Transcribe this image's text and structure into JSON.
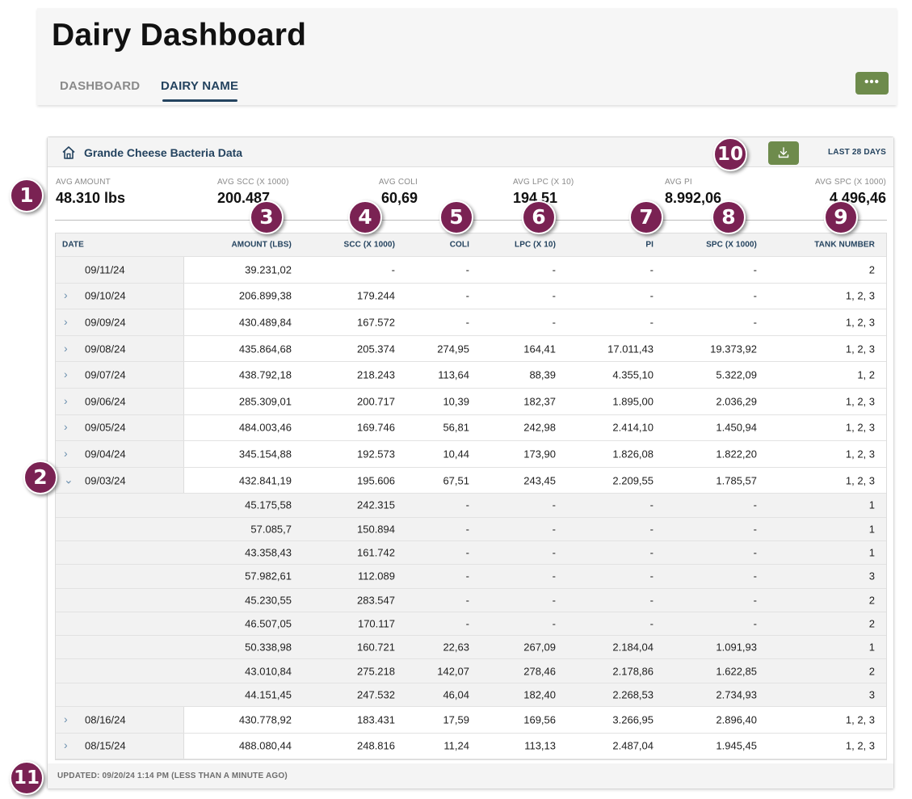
{
  "header": {
    "title": "Dairy Dashboard",
    "tabs": [
      {
        "label": "DASHBOARD",
        "active": false
      },
      {
        "label": "DAIRY NAME",
        "active": true
      }
    ],
    "more_label": "•••"
  },
  "card": {
    "title": "Grande Cheese Bacteria Data",
    "range_label": "LAST 28 DAYS",
    "icons": {
      "home": "home-icon",
      "download": "download-icon"
    },
    "summary": [
      {
        "label": "AVG AMOUNT",
        "value": "48.310 lbs"
      },
      {
        "label": "AVG SCC (X 1000)",
        "value": "200.487"
      },
      {
        "label": "AVG COLI",
        "value": "60,69"
      },
      {
        "label": "AVG LPC (X 10)",
        "value": "194,51"
      },
      {
        "label": "AVG PI",
        "value": "8.992,06"
      },
      {
        "label": "AVG SPC (X 1000)",
        "value": "4.496,46"
      }
    ],
    "table": {
      "columns": [
        "DATE",
        "AMOUNT (LBS)",
        "SCC (X 1000)",
        "COLI",
        "LPC (X 10)",
        "PI",
        "SPC (X 1000)",
        "TANK NUMBER"
      ],
      "rows": [
        {
          "kind": "main",
          "chevron": "",
          "date": "09/11/24",
          "amount": "39.231,02",
          "scc": "-",
          "coli": "-",
          "lpc": "-",
          "pi": "-",
          "spc": "-",
          "tank": "2"
        },
        {
          "kind": "main",
          "chevron": "›",
          "date": "09/10/24",
          "amount": "206.899,38",
          "scc": "179.244",
          "coli": "-",
          "lpc": "-",
          "pi": "-",
          "spc": "-",
          "tank": "1, 2, 3"
        },
        {
          "kind": "main",
          "chevron": "›",
          "date": "09/09/24",
          "amount": "430.489,84",
          "scc": "167.572",
          "coli": "-",
          "lpc": "-",
          "pi": "-",
          "spc": "-",
          "tank": "1, 2, 3"
        },
        {
          "kind": "main",
          "chevron": "›",
          "date": "09/08/24",
          "amount": "435.864,68",
          "scc": "205.374",
          "coli": "274,95",
          "lpc": "164,41",
          "pi": "17.011,43",
          "spc": "19.373,92",
          "tank": "1, 2, 3"
        },
        {
          "kind": "main",
          "chevron": "›",
          "date": "09/07/24",
          "amount": "438.792,18",
          "scc": "218.243",
          "coli": "113,64",
          "lpc": "88,39",
          "pi": "4.355,10",
          "spc": "5.322,09",
          "tank": "1, 2"
        },
        {
          "kind": "main",
          "chevron": "›",
          "date": "09/06/24",
          "amount": "285.309,01",
          "scc": "200.717",
          "coli": "10,39",
          "lpc": "182,37",
          "pi": "1.895,00",
          "spc": "2.036,29",
          "tank": "1, 2, 3"
        },
        {
          "kind": "main",
          "chevron": "›",
          "date": "09/05/24",
          "amount": "484.003,46",
          "scc": "169.746",
          "coli": "56,81",
          "lpc": "242,98",
          "pi": "2.414,10",
          "spc": "1.450,94",
          "tank": "1, 2, 3"
        },
        {
          "kind": "main",
          "chevron": "›",
          "date": "09/04/24",
          "amount": "345.154,88",
          "scc": "192.573",
          "coli": "10,44",
          "lpc": "173,90",
          "pi": "1.826,08",
          "spc": "1.822,20",
          "tank": "1, 2, 3"
        },
        {
          "kind": "main",
          "chevron": "⌄",
          "date": "09/03/24",
          "amount": "432.841,19",
          "scc": "195.606",
          "coli": "67,51",
          "lpc": "243,45",
          "pi": "2.209,55",
          "spc": "1.785,57",
          "tank": "1, 2, 3"
        },
        {
          "kind": "sub",
          "amount": "45.175,58",
          "scc": "242.315",
          "coli": "-",
          "lpc": "-",
          "pi": "-",
          "spc": "-",
          "tank": "1"
        },
        {
          "kind": "sub",
          "amount": "57.085,7",
          "scc": "150.894",
          "coli": "-",
          "lpc": "-",
          "pi": "-",
          "spc": "-",
          "tank": "1"
        },
        {
          "kind": "sub",
          "amount": "43.358,43",
          "scc": "161.742",
          "coli": "-",
          "lpc": "-",
          "pi": "-",
          "spc": "-",
          "tank": "1"
        },
        {
          "kind": "sub",
          "amount": "57.982,61",
          "scc": "112.089",
          "coli": "-",
          "lpc": "-",
          "pi": "-",
          "spc": "-",
          "tank": "3"
        },
        {
          "kind": "sub",
          "amount": "45.230,55",
          "scc": "283.547",
          "coli": "-",
          "lpc": "-",
          "pi": "-",
          "spc": "-",
          "tank": "2"
        },
        {
          "kind": "sub",
          "amount": "46.507,05",
          "scc": "170.117",
          "coli": "-",
          "lpc": "-",
          "pi": "-",
          "spc": "-",
          "tank": "2"
        },
        {
          "kind": "sub",
          "amount": "50.338,98",
          "scc": "160.721",
          "coli": "22,63",
          "lpc": "267,09",
          "pi": "2.184,04",
          "spc": "1.091,93",
          "tank": "1"
        },
        {
          "kind": "sub",
          "amount": "43.010,84",
          "scc": "275.218",
          "coli": "142,07",
          "lpc": "278,46",
          "pi": "2.178,86",
          "spc": "1.622,85",
          "tank": "2"
        },
        {
          "kind": "sub",
          "amount": "44.151,45",
          "scc": "247.532",
          "coli": "46,04",
          "lpc": "182,40",
          "pi": "2.268,53",
          "spc": "2.734,93",
          "tank": "3"
        },
        {
          "kind": "main",
          "chevron": "›",
          "date": "08/16/24",
          "amount": "430.778,92",
          "scc": "183.431",
          "coli": "17,59",
          "lpc": "169,56",
          "pi": "3.266,95",
          "spc": "2.896,40",
          "tank": "1, 2, 3"
        },
        {
          "kind": "main",
          "chevron": "›",
          "date": "08/15/24",
          "amount": "488.080,44",
          "scc": "248.816",
          "coli": "11,24",
          "lpc": "113,13",
          "pi": "2.487,04",
          "spc": "1.945,45",
          "tank": "1, 2, 3"
        }
      ]
    },
    "updated": "UPDATED: 09/20/24 1:14 PM (LESS THAN A MINUTE AGO)"
  },
  "callouts": [
    "1",
    "2",
    "3",
    "4",
    "5",
    "6",
    "7",
    "8",
    "9",
    "10",
    "11"
  ],
  "colors": {
    "navy": "#24435f",
    "green": "#6e8b4c",
    "badge": "#7a2253"
  }
}
